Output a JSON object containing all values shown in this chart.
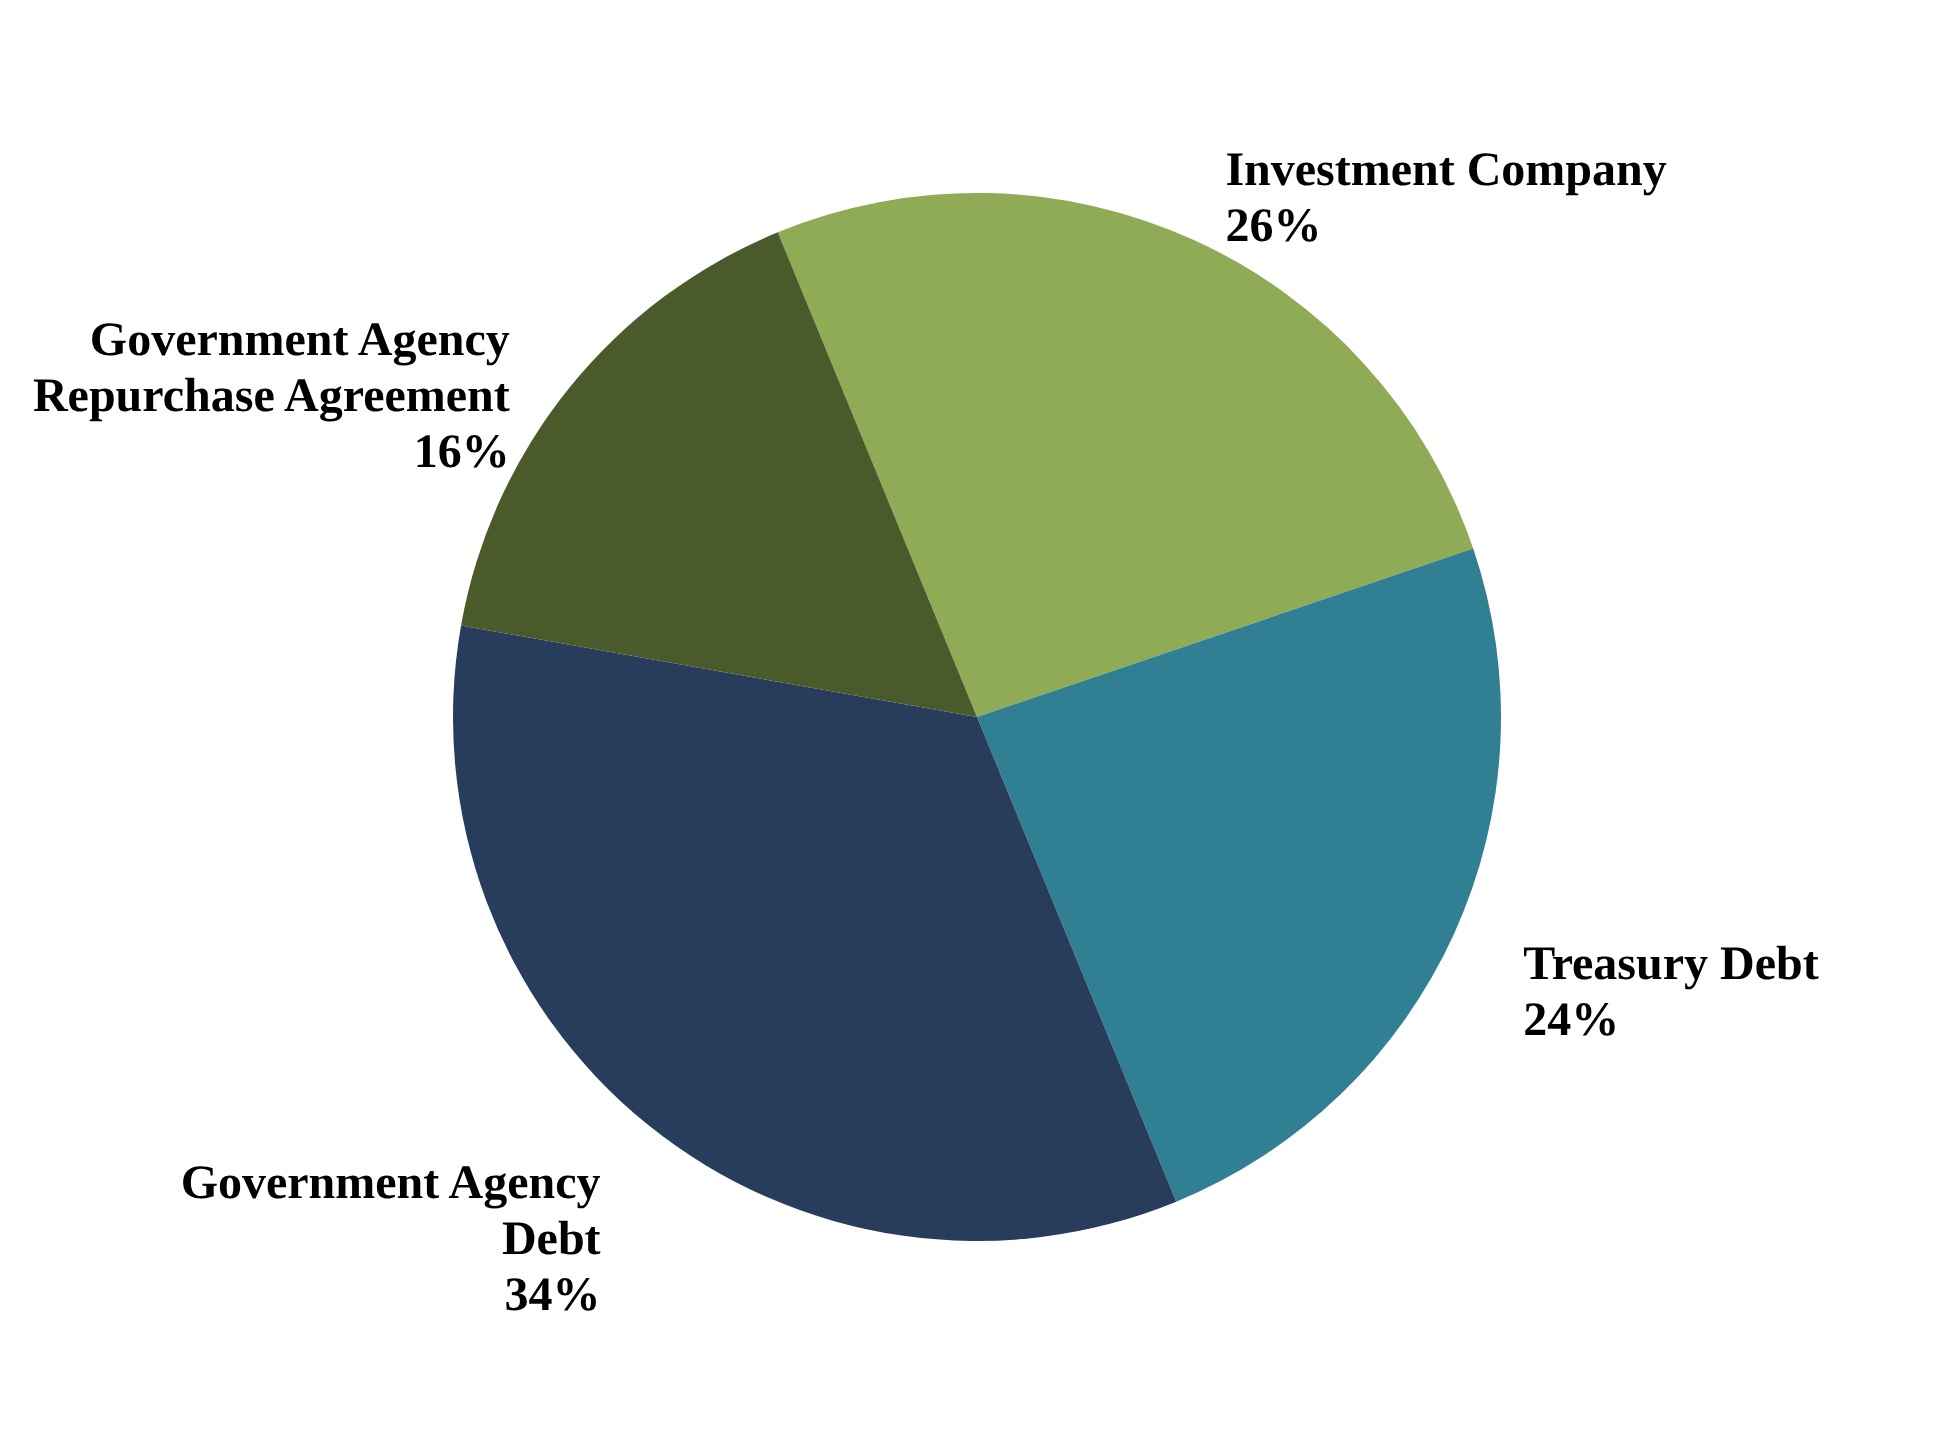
{
  "chart_data": {
    "type": "pie",
    "categories": [
      "Investment Company",
      "Treasury Debt",
      "Government Agency Debt",
      "Government Agency Repurchase Agreement"
    ],
    "values": [
      26,
      24,
      34,
      16
    ],
    "value_labels": [
      "26%",
      "24%",
      "34%",
      "16%"
    ],
    "colors": [
      "#8fab56",
      "#317f92",
      "#283d5b",
      "#4b5a2b"
    ]
  }
}
